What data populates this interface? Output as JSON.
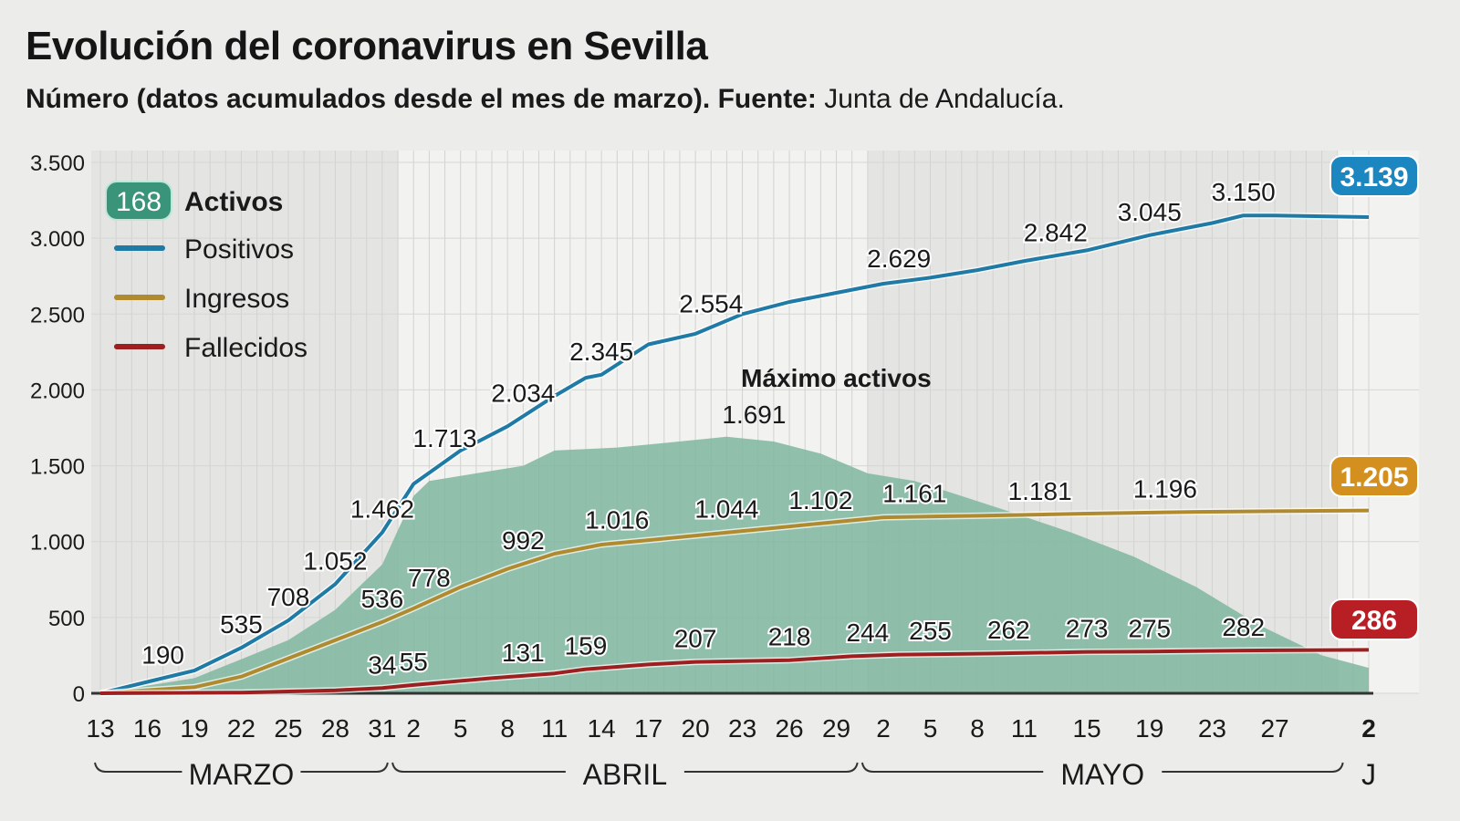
{
  "chart_data": {
    "type": "line",
    "title": "Evolución del coronavirus en Sevilla",
    "subtitle": {
      "text": "Número (datos acumulados desde el mes de marzo).",
      "source_label": "Fuente:",
      "source": "Junta de Andalucía."
    },
    "ylim": [
      0,
      3500
    ],
    "y_ticks": [
      0,
      500,
      1000,
      1500,
      2000,
      2500,
      3000,
      3500
    ],
    "y_tick_labels": [
      "0",
      "500",
      "1.000",
      "1.500",
      "2.000",
      "2.500",
      "3.000",
      "3.500"
    ],
    "x_range": [
      "03-13",
      "06-02"
    ],
    "x_ticks": [
      {
        "date": "03-13",
        "label": "13"
      },
      {
        "date": "03-16",
        "label": "16"
      },
      {
        "date": "03-19",
        "label": "19"
      },
      {
        "date": "03-22",
        "label": "22"
      },
      {
        "date": "03-25",
        "label": "25"
      },
      {
        "date": "03-28",
        "label": "28"
      },
      {
        "date": "03-31",
        "label": "31"
      },
      {
        "date": "04-02",
        "label": "2"
      },
      {
        "date": "04-05",
        "label": "5"
      },
      {
        "date": "04-08",
        "label": "8"
      },
      {
        "date": "04-11",
        "label": "11"
      },
      {
        "date": "04-14",
        "label": "14"
      },
      {
        "date": "04-17",
        "label": "17"
      },
      {
        "date": "04-20",
        "label": "20"
      },
      {
        "date": "04-23",
        "label": "23"
      },
      {
        "date": "04-26",
        "label": "26"
      },
      {
        "date": "04-29",
        "label": "29"
      },
      {
        "date": "05-02",
        "label": "2"
      },
      {
        "date": "05-05",
        "label": "5"
      },
      {
        "date": "05-08",
        "label": "8"
      },
      {
        "date": "05-11",
        "label": "11"
      },
      {
        "date": "05-15",
        "label": "15"
      },
      {
        "date": "05-19",
        "label": "19"
      },
      {
        "date": "05-23",
        "label": "23"
      },
      {
        "date": "05-27",
        "label": "27"
      },
      {
        "date": "06-02",
        "label": "2"
      }
    ],
    "months": [
      {
        "label": "MARZO",
        "from": "03-13",
        "to": "03-31"
      },
      {
        "label": "ABRIL",
        "from": "04-01",
        "to": "04-30"
      },
      {
        "label": "MAYO",
        "from": "05-01",
        "to": "05-31"
      },
      {
        "label": "J",
        "from": "06-01",
        "to": "06-02"
      }
    ],
    "grid": true,
    "legend_position": "top-left",
    "series": [
      {
        "name": "Activos",
        "kind": "area",
        "color": "#7fb79f",
        "legend_badge": "168",
        "badge_color": "#3a9479",
        "points": [
          [
            "03-13",
            0
          ],
          [
            "03-19",
            100
          ],
          [
            "03-25",
            350
          ],
          [
            "03-28",
            550
          ],
          [
            "03-31",
            850
          ],
          [
            "04-02",
            1300
          ],
          [
            "04-03",
            1400
          ],
          [
            "04-06",
            1450
          ],
          [
            "04-09",
            1500
          ],
          [
            "04-11",
            1600
          ],
          [
            "04-15",
            1620
          ],
          [
            "04-18",
            1650
          ],
          [
            "04-22",
            1691
          ],
          [
            "04-25",
            1660
          ],
          [
            "04-28",
            1580
          ],
          [
            "05-01",
            1450
          ],
          [
            "05-04",
            1400
          ],
          [
            "05-07",
            1300
          ],
          [
            "05-10",
            1200
          ],
          [
            "05-14",
            1060
          ],
          [
            "05-18",
            900
          ],
          [
            "05-22",
            700
          ],
          [
            "05-26",
            450
          ],
          [
            "05-30",
            250
          ],
          [
            "06-02",
            168
          ]
        ],
        "annotation": {
          "title": "Máximo activos",
          "value_label": "1.691",
          "date": "04-22",
          "value": 1691
        }
      },
      {
        "name": "Positivos",
        "kind": "line",
        "color": "#1f7aa6",
        "end_label": "3.139",
        "end_color": "#1b86c0",
        "points": [
          [
            "03-13",
            0
          ],
          [
            "03-16",
            75
          ],
          [
            "03-19",
            150
          ],
          [
            "03-22",
            300
          ],
          [
            "03-25",
            480
          ],
          [
            "03-28",
            720
          ],
          [
            "03-31",
            1060
          ],
          [
            "04-02",
            1380
          ],
          [
            "04-05",
            1600
          ],
          [
            "04-08",
            1760
          ],
          [
            "04-11",
            1960
          ],
          [
            "04-13",
            2080
          ],
          [
            "04-14",
            2100
          ],
          [
            "04-17",
            2300
          ],
          [
            "04-20",
            2370
          ],
          [
            "04-23",
            2500
          ],
          [
            "04-26",
            2580
          ],
          [
            "04-29",
            2640
          ],
          [
            "05-02",
            2700
          ],
          [
            "05-05",
            2740
          ],
          [
            "05-08",
            2790
          ],
          [
            "05-11",
            2850
          ],
          [
            "05-15",
            2920
          ],
          [
            "05-19",
            3020
          ],
          [
            "05-23",
            3100
          ],
          [
            "05-25",
            3150
          ],
          [
            "05-27",
            3150
          ],
          [
            "06-02",
            3139
          ]
        ],
        "data_labels": [
          [
            "03-17",
            "190"
          ],
          [
            "03-22",
            "535"
          ],
          [
            "03-25",
            "708"
          ],
          [
            "03-28",
            "1.052"
          ],
          [
            "03-31",
            "1.462"
          ],
          [
            "04-04",
            "1.713"
          ],
          [
            "04-09",
            "2.034"
          ],
          [
            "04-14",
            "2.345"
          ],
          [
            "04-21",
            "2.554"
          ],
          [
            "05-03",
            "2.629"
          ],
          [
            "05-13",
            "2.842"
          ],
          [
            "05-19",
            "3.045"
          ],
          [
            "05-25",
            "3.150"
          ]
        ]
      },
      {
        "name": "Ingresos",
        "kind": "line",
        "color": "#b08a2e",
        "end_label": "1.205",
        "end_color": "#d3901f",
        "points": [
          [
            "03-13",
            0
          ],
          [
            "03-19",
            40
          ],
          [
            "03-22",
            110
          ],
          [
            "03-25",
            230
          ],
          [
            "03-28",
            350
          ],
          [
            "03-31",
            470
          ],
          [
            "04-02",
            560
          ],
          [
            "04-05",
            700
          ],
          [
            "04-08",
            820
          ],
          [
            "04-11",
            920
          ],
          [
            "04-14",
            980
          ],
          [
            "04-17",
            1010
          ],
          [
            "04-20",
            1040
          ],
          [
            "04-23",
            1070
          ],
          [
            "04-26",
            1100
          ],
          [
            "04-29",
            1130
          ],
          [
            "05-02",
            1160
          ],
          [
            "05-08",
            1170
          ],
          [
            "05-15",
            1185
          ],
          [
            "05-22",
            1196
          ],
          [
            "06-02",
            1205
          ]
        ],
        "data_labels": [
          [
            "03-31",
            "536"
          ],
          [
            "04-03",
            "778"
          ],
          [
            "04-09",
            "992"
          ],
          [
            "04-15",
            "1.016"
          ],
          [
            "04-22",
            "1.044"
          ],
          [
            "04-28",
            "1.102"
          ],
          [
            "05-04",
            "1.161"
          ],
          [
            "05-12",
            "1.181"
          ],
          [
            "05-20",
            "1.196"
          ]
        ]
      },
      {
        "name": "Fallecidos",
        "kind": "line",
        "color": "#9e1f1f",
        "end_label": "286",
        "end_color": "#b81f24",
        "points": [
          [
            "03-13",
            0
          ],
          [
            "03-22",
            5
          ],
          [
            "03-28",
            20
          ],
          [
            "03-31",
            34
          ],
          [
            "04-02",
            55
          ],
          [
            "04-07",
            100
          ],
          [
            "04-11",
            131
          ],
          [
            "04-13",
            159
          ],
          [
            "04-17",
            190
          ],
          [
            "04-20",
            207
          ],
          [
            "04-26",
            218
          ],
          [
            "04-30",
            244
          ],
          [
            "05-03",
            255
          ],
          [
            "05-09",
            262
          ],
          [
            "05-15",
            273
          ],
          [
            "05-19",
            275
          ],
          [
            "05-25",
            282
          ],
          [
            "06-02",
            286
          ]
        ],
        "data_labels": [
          [
            "03-31",
            "34"
          ],
          [
            "04-02",
            "55"
          ],
          [
            "04-09",
            "131"
          ],
          [
            "04-13",
            "159"
          ],
          [
            "04-20",
            "207"
          ],
          [
            "04-26",
            "218"
          ],
          [
            "05-01",
            "244"
          ],
          [
            "05-05",
            "255"
          ],
          [
            "05-10",
            "262"
          ],
          [
            "05-15",
            "273"
          ],
          [
            "05-19",
            "275"
          ],
          [
            "05-25",
            "282"
          ]
        ]
      }
    ]
  }
}
